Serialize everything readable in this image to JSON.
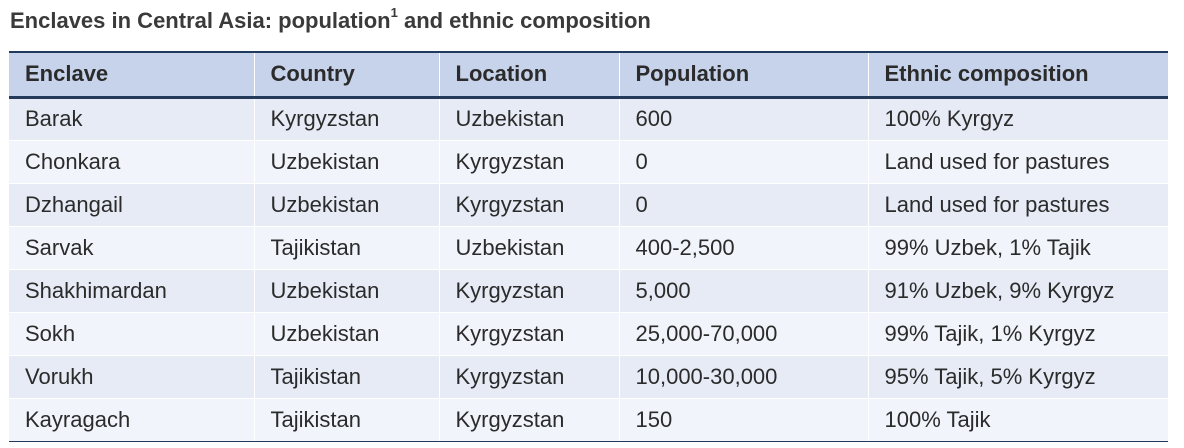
{
  "title": {
    "text": "Enclaves in Central Asia: population",
    "footnote_mark": "1",
    "text_after": " and ethnic composition"
  },
  "table": {
    "headers": [
      "Enclave",
      "Country",
      "Location",
      "Population",
      "Ethnic composition"
    ],
    "rows": [
      [
        "Barak",
        "Kyrgyzstan",
        "Uzbekistan",
        "600",
        "100% Kyrgyz"
      ],
      [
        "Chonkara",
        "Uzbekistan",
        "Kyrgyzstan",
        "0",
        "Land used for pastures"
      ],
      [
        "Dzhangail",
        "Uzbekistan",
        "Kyrgyzstan",
        "0",
        "Land used for pastures"
      ],
      [
        "Sarvak",
        "Tajikistan",
        "Uzbekistan",
        "400-2,500",
        "99% Uzbek, 1% Tajik"
      ],
      [
        "Shakhimardan",
        "Uzbekistan",
        "Kyrgyzstan",
        "5,000",
        "91% Uzbek, 9% Kyrgyz"
      ],
      [
        "Sokh",
        "Uzbekistan",
        "Kyrgyzstan",
        "25,000-70,000",
        "99% Tajik, 1% Kyrgyz"
      ],
      [
        "Vorukh",
        "Tajikistan",
        "Kyrgyzstan",
        "10,000-30,000",
        "95% Tajik, 5% Kyrgyz"
      ],
      [
        "Kayragach",
        "Tajikistan",
        "Kyrgyzstan",
        "150",
        "100% Tajik"
      ]
    ]
  },
  "colors": {
    "header_bg": "#c7d3ea",
    "row_odd": "#e6ebf5",
    "row_even": "#f1f4fa",
    "rule": "#243a5a"
  }
}
